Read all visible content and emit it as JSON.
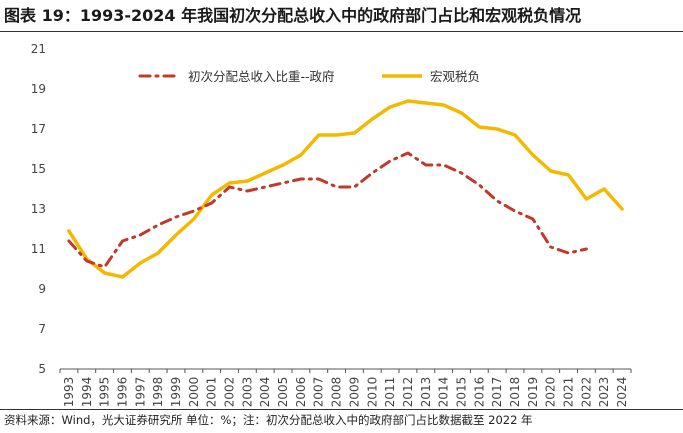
{
  "title": "图表 19：1993-2024 年我国初次分配总收入中的政府部门占比和宏观税负情况",
  "source_note": "资料来源：Wind，光大证券研究所 单位：%；注：初次分配总收入中的政府部门占比数据截至 2022 年",
  "chart_data": {
    "type": "line",
    "title": "",
    "xlabel": "",
    "ylabel": "",
    "ylim": [
      5,
      21
    ],
    "yticks": [
      5,
      7,
      9,
      11,
      13,
      15,
      17,
      19,
      21
    ],
    "grid": false,
    "legend_position": "top",
    "x": [
      "1993",
      "1994",
      "1995",
      "1996",
      "1997",
      "1998",
      "1999",
      "2000",
      "2001",
      "2002",
      "2003",
      "2004",
      "2005",
      "2006",
      "2007",
      "2008",
      "2009",
      "2010",
      "2011",
      "2012",
      "2013",
      "2014",
      "2015",
      "2016",
      "2017",
      "2018",
      "2019",
      "2020",
      "2021",
      "2022",
      "2023",
      "2024"
    ],
    "series": [
      {
        "name": "初次分配总收入比重--政府",
        "color": "#c0392b",
        "style": "dash-dot",
        "values": [
          11.4,
          10.4,
          10.1,
          11.4,
          11.7,
          12.2,
          12.6,
          12.9,
          13.3,
          14.1,
          13.9,
          14.1,
          14.3,
          14.5,
          14.5,
          14.1,
          14.1,
          14.8,
          15.4,
          15.8,
          15.2,
          15.2,
          14.8,
          14.2,
          13.4,
          12.9,
          12.5,
          11.1,
          10.8,
          11.0,
          null,
          null
        ]
      },
      {
        "name": "宏观税负",
        "color": "#f5b800",
        "style": "solid",
        "values": [
          11.9,
          10.5,
          9.8,
          9.6,
          10.3,
          10.8,
          11.7,
          12.5,
          13.7,
          14.3,
          14.4,
          14.8,
          15.2,
          15.7,
          16.7,
          16.7,
          16.8,
          17.5,
          18.1,
          18.4,
          18.3,
          18.2,
          17.8,
          17.1,
          17.0,
          16.7,
          15.7,
          14.9,
          14.7,
          13.5,
          14.0,
          13.0
        ]
      }
    ]
  }
}
